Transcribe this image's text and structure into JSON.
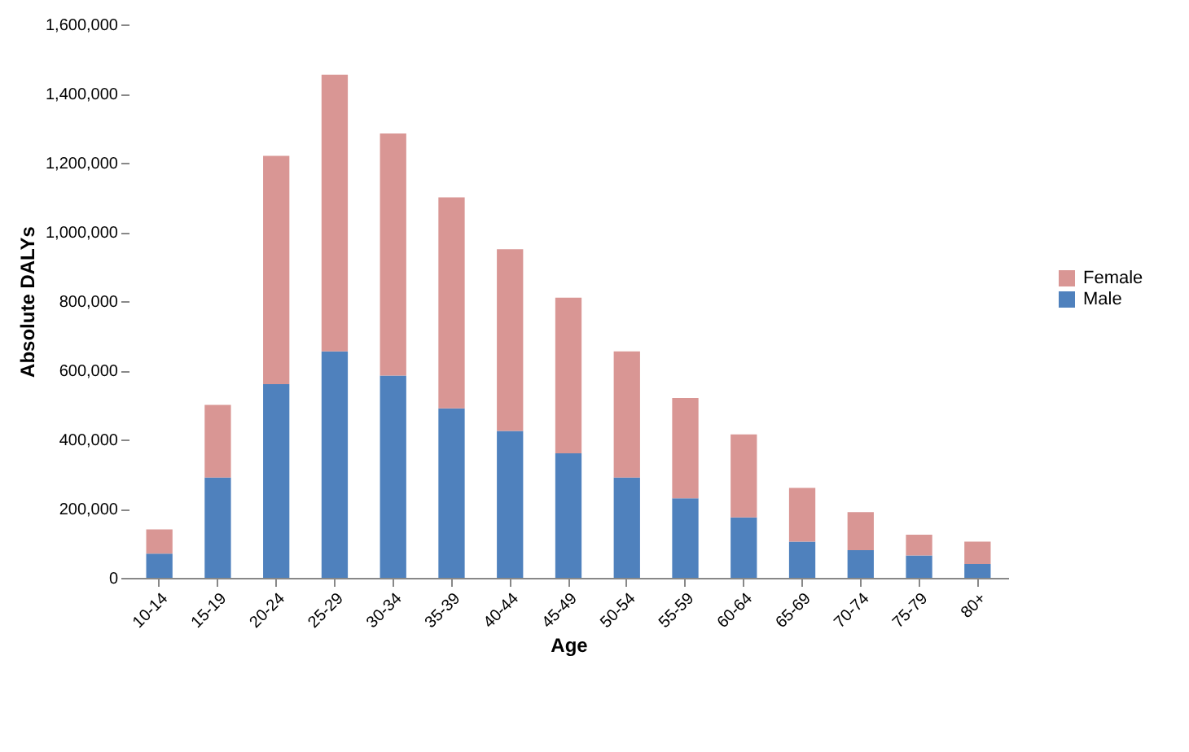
{
  "chart_data": {
    "type": "bar",
    "stacked": true,
    "xlabel": "Age",
    "ylabel": "Absolute DALYs",
    "categories": [
      "10-14",
      "15-19",
      "20-24",
      "25-29",
      "30-34",
      "35-39",
      "40-44",
      "45-49",
      "50-54",
      "55-59",
      "60-64",
      "65-69",
      "70-74",
      "75-79",
      "80+"
    ],
    "series": [
      {
        "name": "Male",
        "color": "#4f81bd",
        "values": [
          70000,
          290000,
          560000,
          655000,
          585000,
          490000,
          425000,
          360000,
          290000,
          230000,
          175000,
          105000,
          80000,
          65000,
          40000
        ]
      },
      {
        "name": "Female",
        "color": "#d99694",
        "values": [
          70000,
          210000,
          660000,
          800000,
          700000,
          610000,
          525000,
          450000,
          365000,
          290000,
          240000,
          155000,
          110000,
          60000,
          65000
        ]
      }
    ],
    "ylim": [
      0,
      1600000
    ],
    "yticks": [
      0,
      {
        "value": 200000,
        "label": "200,000"
      },
      {
        "value": 400000,
        "label": "400,000"
      },
      {
        "value": 600000,
        "label": "600,000"
      },
      {
        "value": 800000,
        "label": "800,000"
      },
      {
        "value": 1000000,
        "label": "1,000,000"
      },
      {
        "value": 1200000,
        "label": "1,200,000"
      },
      {
        "value": 1400000,
        "label": "1,400,000"
      },
      {
        "value": 1600000,
        "label": "1,600,000"
      }
    ],
    "grid": false,
    "legend": "right"
  }
}
